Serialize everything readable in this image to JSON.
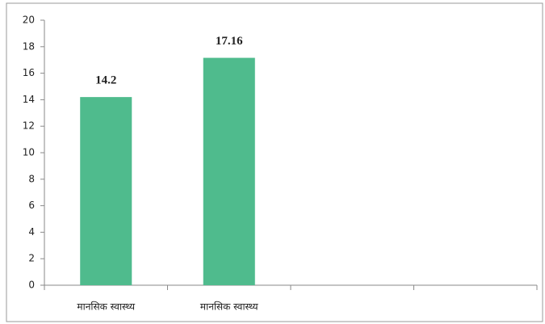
{
  "chart_data": {
    "type": "bar",
    "categories": [
      "मानसिक स्वास्थ्य",
      "मानसिक स्वास्थ्य",
      null,
      null
    ],
    "values": [
      14.2,
      17.16,
      null,
      null
    ],
    "color": "#4fbb8d",
    "ylim": [
      0,
      20
    ],
    "yticks": [
      0,
      2,
      4,
      6,
      8,
      10,
      12,
      14,
      16,
      18,
      20
    ],
    "grid": false,
    "data_labels": true
  }
}
